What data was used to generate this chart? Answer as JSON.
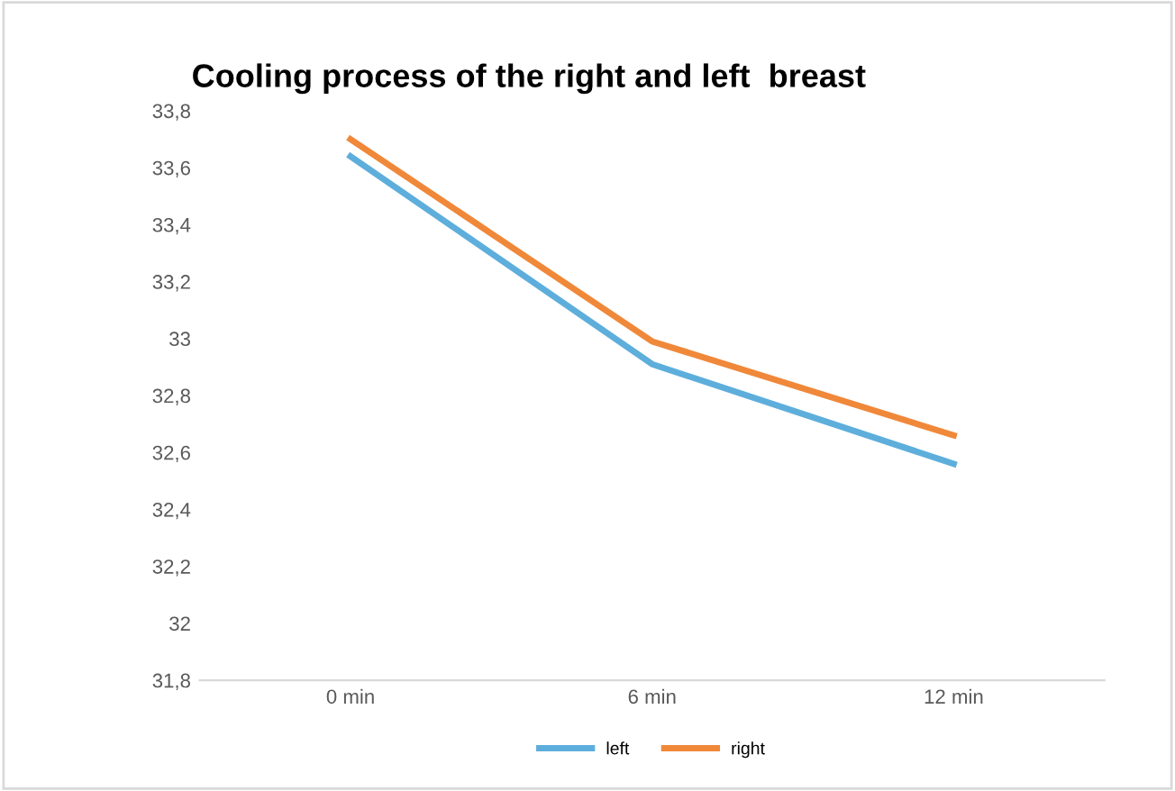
{
  "chart_data": {
    "type": "line",
    "title": "Cooling process of the right and left  breast",
    "categories": [
      "0 min",
      "6 min",
      "12 min"
    ],
    "series": [
      {
        "name": "left",
        "color": "#5eaedc",
        "values": [
          33.64,
          32.91,
          32.56
        ]
      },
      {
        "name": "right",
        "color": "#f0883a",
        "values": [
          33.7,
          32.99,
          32.66
        ]
      }
    ],
    "ylim": [
      31.8,
      33.8
    ],
    "yticks": [
      {
        "value": 31.8,
        "label": "31,8"
      },
      32,
      {
        "value": 32.2,
        "label": "32,2"
      },
      {
        "value": 32.4,
        "label": "32,4"
      },
      {
        "value": 32.6,
        "label": "32,6"
      },
      {
        "value": 32.8,
        "label": "32,8"
      },
      33,
      {
        "value": 33.2,
        "label": "33,2"
      },
      {
        "value": 33.4,
        "label": "33,4"
      },
      {
        "value": 33.6,
        "label": "33,6"
      },
      {
        "value": 33.8,
        "label": "33,8"
      }
    ],
    "grid": false,
    "legend": "bottom",
    "marker": "none",
    "line_style": "solid"
  }
}
